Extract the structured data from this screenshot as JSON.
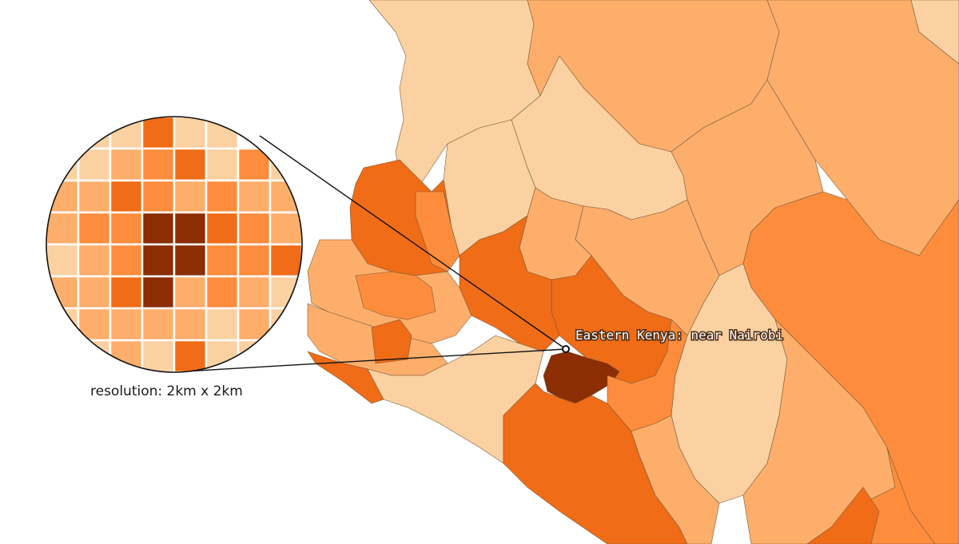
{
  "colors": {
    "c1": "#fbd1a2",
    "c2": "#fdae6b",
    "c3": "#fd8d3c",
    "c4": "#f06c16",
    "c5": "#8c2d04",
    "border": "#7a5a3a",
    "grid_line": "#ffffff",
    "callout_line": "#111111"
  },
  "labels": {
    "location": "Eastern Kenya: near Nairobi",
    "resolution": "resolution: 2km x 2km"
  },
  "zoom_grid": {
    "rows": 8,
    "cols": 8,
    "levels": [
      [
        1,
        1,
        1,
        4,
        1,
        1,
        0,
        0
      ],
      [
        1,
        1,
        2,
        3,
        4,
        1,
        3,
        1
      ],
      [
        2,
        2,
        4,
        3,
        2,
        3,
        2,
        2
      ],
      [
        2,
        3,
        3,
        5,
        5,
        4,
        3,
        2
      ],
      [
        1,
        2,
        3,
        5,
        5,
        3,
        3,
        4
      ],
      [
        2,
        2,
        4,
        5,
        2,
        3,
        2,
        1
      ],
      [
        1,
        2,
        2,
        2,
        2,
        1,
        2,
        1
      ],
      [
        1,
        1,
        2,
        1,
        4,
        1,
        1,
        1
      ]
    ]
  },
  "icons": {
    "marker": "location-dot-icon"
  }
}
